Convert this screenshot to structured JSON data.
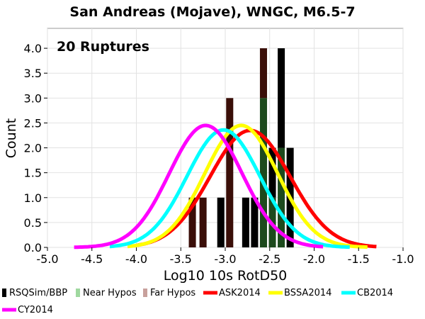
{
  "chart_data": {
    "type": "bar",
    "title": "San Andreas (Mojave), WNGC, M6.5-7",
    "annotation": "20 Ruptures",
    "xlabel": "Log10 10s RotD50",
    "ylabel": "Count",
    "xlim": [
      -5.0,
      -1.0
    ],
    "ylim": [
      0.0,
      4.4
    ],
    "x_ticks": [
      "-5.0",
      "-4.5",
      "-4.0",
      "-3.5",
      "-3.0",
      "-2.5",
      "-2.0",
      "-1.5",
      "-1.0"
    ],
    "y_ticks": [
      "0.0",
      "0.5",
      "1.0",
      "1.5",
      "2.0",
      "2.5",
      "3.0",
      "3.5",
      "4.0"
    ],
    "grid": true,
    "legend_position": "bottom",
    "bin_width": 0.08,
    "histogram": [
      {
        "x": -3.37,
        "total": 1,
        "near": 0,
        "far": 1
      },
      {
        "x": -3.25,
        "total": 1,
        "near": 0,
        "far": 1
      },
      {
        "x": -3.05,
        "total": 1,
        "near": 0,
        "far": 0
      },
      {
        "x": -2.95,
        "total": 3,
        "near": 0,
        "far": 3
      },
      {
        "x": -2.77,
        "total": 1,
        "near": 0,
        "far": 0
      },
      {
        "x": -2.67,
        "total": 1,
        "near": 0,
        "far": 0
      },
      {
        "x": -2.57,
        "total": 4,
        "near": 3,
        "far": 1
      },
      {
        "x": -2.47,
        "total": 2,
        "near": 1,
        "far": 0
      },
      {
        "x": -2.37,
        "total": 4,
        "near": 2,
        "far": 0
      },
      {
        "x": -2.27,
        "total": 2,
        "near": 0,
        "far": 0
      }
    ],
    "series": [
      {
        "name": "RSQSim/BBP",
        "color": "#000000",
        "kind": "bar"
      },
      {
        "name": "Near Hypos",
        "color": "#9fd89f",
        "kind": "bar"
      },
      {
        "name": "Far Hypos",
        "color": "#c8a09c",
        "kind": "bar"
      },
      {
        "name": "ASK2014",
        "color": "#ff0000",
        "kind": "line",
        "mean": -2.72,
        "sigma": 0.45,
        "peak": 2.35,
        "range": [
          -4.0,
          -1.3
        ]
      },
      {
        "name": "BSSA2014",
        "color": "#ffff00",
        "kind": "line",
        "mean": -2.82,
        "sigma": 0.41,
        "peak": 2.45,
        "range": [
          -4.1,
          -1.4
        ]
      },
      {
        "name": "CB2014",
        "color": "#00ffff",
        "kind": "line",
        "mean": -3.02,
        "sigma": 0.41,
        "peak": 2.36,
        "range": [
          -4.3,
          -1.6
        ]
      },
      {
        "name": "CY2014",
        "color": "#ff00ff",
        "kind": "line",
        "mean": -3.22,
        "sigma": 0.41,
        "peak": 2.45,
        "range": [
          -4.7,
          -1.9
        ]
      }
    ]
  }
}
